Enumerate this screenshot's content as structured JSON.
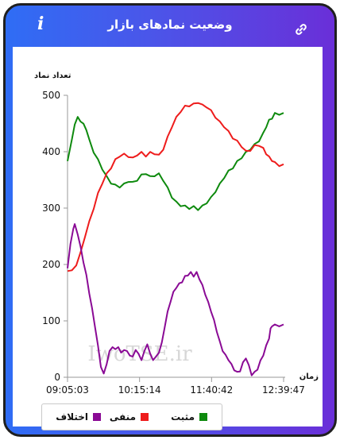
{
  "header": {
    "title": "وضعیت نمادهای بازار",
    "info_icon": "i",
    "link_icon": "link-icon"
  },
  "chart_data": {
    "type": "line",
    "ylabel": "تعداد نماد",
    "xlabel": "زمان",
    "ylim": [
      0,
      500
    ],
    "yticks": [
      0,
      100,
      200,
      300,
      400,
      500
    ],
    "xticks": [
      "09:05:03",
      "10:15:14",
      "11:40:42",
      "12:39:47"
    ],
    "x_range": [
      "09:05:03",
      "12:39:47"
    ],
    "grid": false,
    "legend_position": "bottom-left",
    "watermark": "IwoTSE.ir",
    "series": [
      {
        "name": "مثبت",
        "color": "#0e8a0e",
        "points": [
          [
            0,
            385
          ],
          [
            3,
            420
          ],
          [
            5,
            450
          ],
          [
            7,
            460
          ],
          [
            9,
            455
          ],
          [
            11,
            448
          ],
          [
            13,
            440
          ],
          [
            15,
            420
          ],
          [
            18,
            400
          ],
          [
            21,
            385
          ],
          [
            24,
            370
          ],
          [
            27,
            355
          ],
          [
            30,
            345
          ],
          [
            33,
            340
          ],
          [
            36,
            338
          ],
          [
            39,
            342
          ],
          [
            42,
            348
          ],
          [
            45,
            345
          ],
          [
            48,
            350
          ],
          [
            51,
            358
          ],
          [
            54,
            362
          ],
          [
            57,
            355
          ],
          [
            60,
            358
          ],
          [
            63,
            360
          ],
          [
            66,
            350
          ],
          [
            69,
            335
          ],
          [
            72,
            320
          ],
          [
            75,
            310
          ],
          [
            78,
            305
          ],
          [
            81,
            303
          ],
          [
            84,
            300
          ],
          [
            87,
            302
          ],
          [
            90,
            298
          ],
          [
            93,
            303
          ],
          [
            96,
            310
          ],
          [
            99,
            318
          ],
          [
            102,
            330
          ],
          [
            105,
            342
          ],
          [
            108,
            355
          ],
          [
            111,
            365
          ],
          [
            114,
            372
          ],
          [
            117,
            382
          ],
          [
            120,
            390
          ],
          [
            123,
            398
          ],
          [
            126,
            405
          ],
          [
            129,
            412
          ],
          [
            132,
            420
          ],
          [
            135,
            432
          ],
          [
            137,
            445
          ],
          [
            139,
            455
          ],
          [
            141,
            460
          ],
          [
            143,
            467
          ],
          [
            146,
            467
          ],
          [
            149,
            467
          ]
        ]
      },
      {
        "name": "منفی",
        "color": "#ee1c1c",
        "points": [
          [
            0,
            190
          ],
          [
            3,
            188
          ],
          [
            6,
            200
          ],
          [
            9,
            220
          ],
          [
            12,
            250
          ],
          [
            15,
            275
          ],
          [
            18,
            300
          ],
          [
            21,
            325
          ],
          [
            24,
            345
          ],
          [
            27,
            360
          ],
          [
            30,
            372
          ],
          [
            33,
            385
          ],
          [
            36,
            393
          ],
          [
            39,
            395
          ],
          [
            42,
            392
          ],
          [
            45,
            388
          ],
          [
            48,
            395
          ],
          [
            51,
            398
          ],
          [
            54,
            393
          ],
          [
            57,
            398
          ],
          [
            60,
            397
          ],
          [
            63,
            393
          ],
          [
            66,
            405
          ],
          [
            69,
            425
          ],
          [
            72,
            445
          ],
          [
            75,
            460
          ],
          [
            78,
            472
          ],
          [
            81,
            480
          ],
          [
            84,
            482
          ],
          [
            87,
            484
          ],
          [
            90,
            488
          ],
          [
            93,
            482
          ],
          [
            96,
            480
          ],
          [
            99,
            472
          ],
          [
            102,
            462
          ],
          [
            105,
            452
          ],
          [
            108,
            445
          ],
          [
            111,
            435
          ],
          [
            114,
            425
          ],
          [
            117,
            418
          ],
          [
            120,
            410
          ],
          [
            123,
            400
          ],
          [
            126,
            403
          ],
          [
            129,
            410
          ],
          [
            132,
            412
          ],
          [
            135,
            405
          ],
          [
            137,
            397
          ],
          [
            139,
            390
          ],
          [
            141,
            385
          ],
          [
            143,
            380
          ],
          [
            146,
            376
          ],
          [
            149,
            376
          ]
        ]
      },
      {
        "name": "اختلاف",
        "color": "#8a0a95",
        "points": [
          [
            0,
            195
          ],
          [
            2,
            235
          ],
          [
            4,
            265
          ],
          [
            5,
            270
          ],
          [
            7,
            255
          ],
          [
            9,
            230
          ],
          [
            11,
            205
          ],
          [
            13,
            180
          ],
          [
            15,
            150
          ],
          [
            17,
            120
          ],
          [
            19,
            90
          ],
          [
            21,
            55
          ],
          [
            23,
            20
          ],
          [
            25,
            5
          ],
          [
            27,
            25
          ],
          [
            29,
            45
          ],
          [
            31,
            55
          ],
          [
            33,
            48
          ],
          [
            35,
            55
          ],
          [
            37,
            42
          ],
          [
            39,
            50
          ],
          [
            41,
            45
          ],
          [
            43,
            40
          ],
          [
            45,
            35
          ],
          [
            47,
            50
          ],
          [
            49,
            40
          ],
          [
            51,
            32
          ],
          [
            53,
            45
          ],
          [
            55,
            60
          ],
          [
            57,
            40
          ],
          [
            59,
            32
          ],
          [
            61,
            35
          ],
          [
            63,
            45
          ],
          [
            65,
            60
          ],
          [
            67,
            90
          ],
          [
            69,
            115
          ],
          [
            71,
            135
          ],
          [
            73,
            150
          ],
          [
            75,
            160
          ],
          [
            77,
            165
          ],
          [
            79,
            170
          ],
          [
            81,
            178
          ],
          [
            83,
            182
          ],
          [
            85,
            185
          ],
          [
            87,
            180
          ],
          [
            89,
            185
          ],
          [
            91,
            175
          ],
          [
            93,
            162
          ],
          [
            95,
            148
          ],
          [
            97,
            132
          ],
          [
            99,
            118
          ],
          [
            101,
            100
          ],
          [
            103,
            82
          ],
          [
            105,
            62
          ],
          [
            107,
            48
          ],
          [
            109,
            38
          ],
          [
            111,
            32
          ],
          [
            113,
            22
          ],
          [
            115,
            14
          ],
          [
            117,
            8
          ],
          [
            119,
            12
          ],
          [
            121,
            25
          ],
          [
            123,
            35
          ],
          [
            125,
            20
          ],
          [
            127,
            5
          ],
          [
            129,
            8
          ],
          [
            131,
            15
          ],
          [
            133,
            28
          ],
          [
            135,
            40
          ],
          [
            137,
            55
          ],
          [
            139,
            70
          ],
          [
            140,
            85
          ],
          [
            141,
            92
          ],
          [
            143,
            92
          ],
          [
            146,
            92
          ],
          [
            149,
            92
          ]
        ]
      }
    ]
  }
}
